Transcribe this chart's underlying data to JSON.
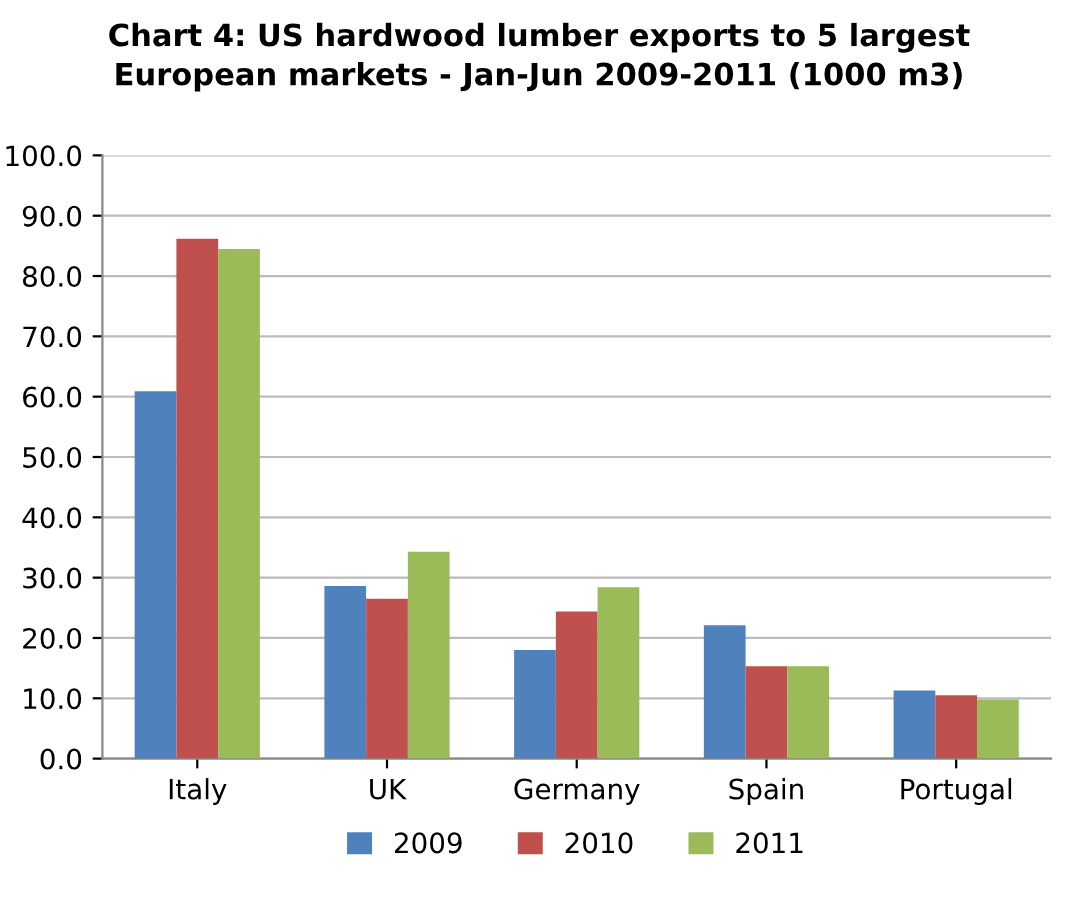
{
  "chart_data": {
    "type": "bar",
    "title": "Chart 4: US hardwood lumber exports to 5 largest\nEuropean markets - Jan-Jun 2009-2011 (1000 m3)",
    "categories": [
      "Italy",
      "UK",
      "Germany",
      "Spain",
      "Portugal"
    ],
    "series": [
      {
        "name": "2009",
        "color": "#4f81bd",
        "values": [
          60.9,
          28.6,
          18.0,
          22.1,
          11.3
        ]
      },
      {
        "name": "2010",
        "color": "#c0504d",
        "values": [
          86.2,
          26.5,
          24.4,
          15.3,
          10.5
        ]
      },
      {
        "name": "2011",
        "color": "#9bbb59",
        "values": [
          84.5,
          34.3,
          28.4,
          15.3,
          9.8
        ]
      }
    ],
    "ylim": [
      0,
      100
    ],
    "yticks": [
      {
        "value": 0,
        "label": "0.0"
      },
      {
        "value": 10,
        "label": "10.0"
      },
      {
        "value": 20,
        "label": "20.0"
      },
      {
        "value": 30,
        "label": "30.0"
      },
      {
        "value": 40,
        "label": "40.0"
      },
      {
        "value": 50,
        "label": "50.0"
      },
      {
        "value": 60,
        "label": "60.0"
      },
      {
        "value": 70,
        "label": "70.0"
      },
      {
        "value": 80,
        "label": "80.0"
      },
      {
        "value": 90,
        "label": "90.0"
      },
      {
        "value": 100,
        "label": "100.0"
      }
    ],
    "grid": "y",
    "legend": "bottom"
  }
}
